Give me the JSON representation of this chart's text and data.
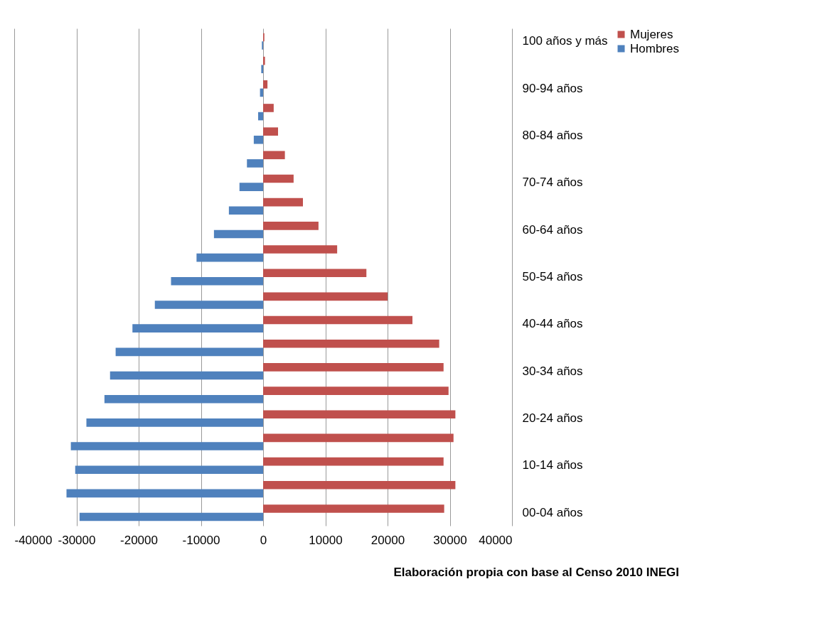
{
  "chart_data": {
    "type": "bar",
    "orientation": "horizontal",
    "categories": [
      "100 años y más",
      null,
      "90-94 años",
      null,
      "80-84 años",
      null,
      "70-74 años",
      null,
      "60-64 años",
      null,
      "50-54 años",
      null,
      "40-44 años",
      null,
      "30-34 años",
      null,
      "20-24 años",
      null,
      "10-14 años",
      null,
      "00-04 años"
    ],
    "series": [
      {
        "name": "Mujeres",
        "color": "#c0504d",
        "values": [
          200,
          300,
          700,
          1700,
          2400,
          3500,
          4900,
          6400,
          8900,
          11900,
          16600,
          20000,
          24000,
          28300,
          29000,
          29800,
          30900,
          30600,
          29000,
          30900,
          29100
        ]
      },
      {
        "name": "Hombres",
        "color": "#4f81bd",
        "values": [
          -200,
          -300,
          -500,
          -800,
          -1500,
          -2600,
          -3800,
          -5500,
          -7900,
          -10700,
          -14800,
          -17400,
          -21000,
          -23700,
          -24600,
          -25500,
          -28400,
          -30900,
          -30200,
          -31600,
          -29500
        ]
      }
    ],
    "xlim": [
      -40000,
      40000
    ],
    "xticks": [
      -40000,
      -30000,
      -20000,
      -10000,
      0,
      10000,
      20000,
      30000,
      40000
    ],
    "grid": "x",
    "legend": "right",
    "annotations": [
      "Elaboración propia con base al Censo 2010 INEGI"
    ]
  }
}
